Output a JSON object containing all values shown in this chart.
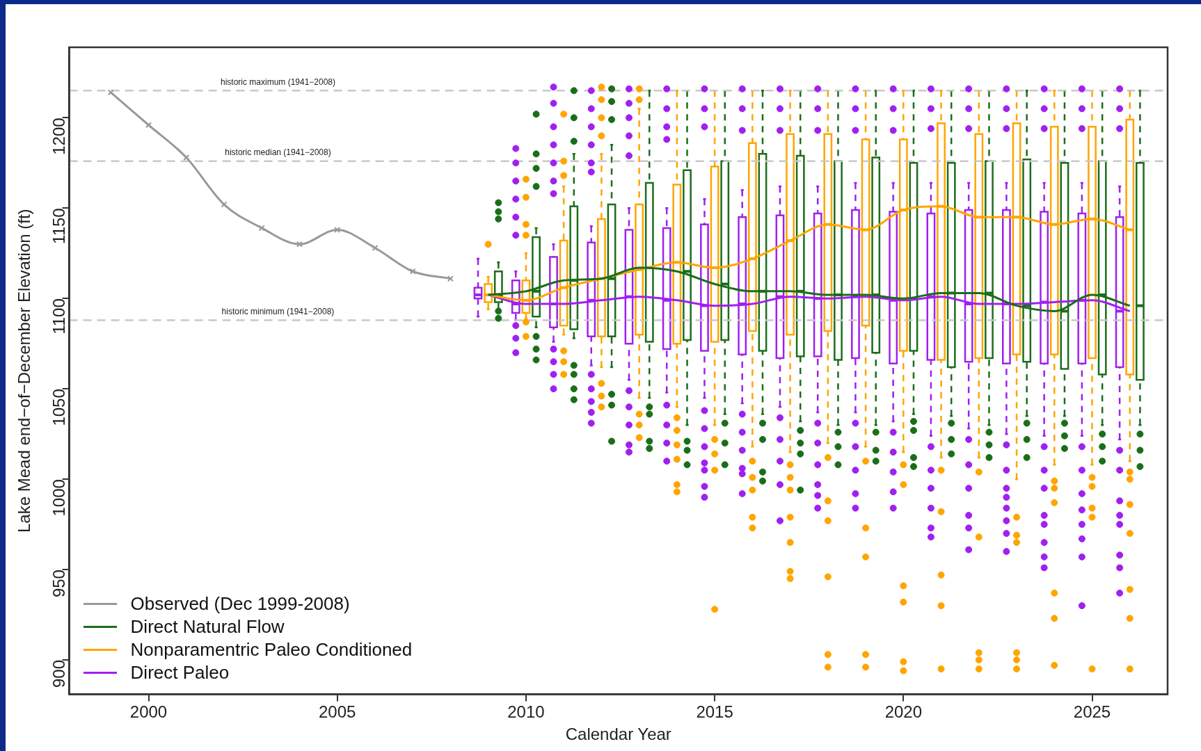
{
  "chart_data": {
    "type": "box",
    "xlabel": "Calendar Year",
    "ylabel": "Lake Mead end−of−December Elevation (ft)",
    "xlim": [
      1997.9,
      2027
    ],
    "xticks": [
      2000,
      2005,
      2010,
      2015,
      2020,
      2025
    ],
    "ylim": [
      881,
      1239
    ],
    "yticks": [
      900,
      950,
      1000,
      1050,
      1100,
      1150,
      1200
    ],
    "grid": false,
    "legend": "bottom left",
    "ref_lines": [
      {
        "axis": "y",
        "value": 1215,
        "label": "historic maximum (1941−2008)",
        "color": "#c8c8c8",
        "line_style": "dashed"
      },
      {
        "axis": "y",
        "value": 1176,
        "label": "historic median (1941−2008)",
        "color": "#c8c8c8",
        "line_style": "dashed"
      },
      {
        "axis": "y",
        "value": 1088,
        "label": "historic minimum (1941−2008)",
        "color": "#c8c8c8",
        "line_style": "dashed"
      }
    ],
    "series": [
      {
        "name": "Observed (Dec 1999-2008)",
        "type": "line",
        "color": "#999999",
        "marker": "cross",
        "x": [
          1999,
          2000,
          2001,
          2002,
          2003,
          2004,
          2005,
          2006,
          2007,
          2008
        ],
        "values": [
          1214,
          1196,
          1178,
          1152,
          1139,
          1130,
          1138,
          1128,
          1115,
          1111
        ]
      },
      {
        "name": "Direct Natural Flow",
        "type": "line",
        "color": "#1a6e1a",
        "x": [
          2009,
          2010,
          2011,
          2012,
          2013,
          2014,
          2015,
          2016,
          2017,
          2018,
          2019,
          2020,
          2021,
          2022,
          2023,
          2024,
          2025,
          2026
        ],
        "values": [
          1102,
          1104,
          1110,
          1111,
          1117,
          1115,
          1108,
          1104,
          1104,
          1102,
          1102,
          1100,
          1103,
          1103,
          1096,
          1093,
          1102,
          1096
        ]
      },
      {
        "name": "Nonparamentric Paleo Conditioned",
        "type": "line",
        "color": "#ffa500",
        "x": [
          2009,
          2010,
          2011,
          2012,
          2013,
          2014,
          2015,
          2016,
          2017,
          2018,
          2019,
          2020,
          2021,
          2022,
          2023,
          2024,
          2025,
          2026
        ],
        "values": [
          1102,
          1099,
          1106,
          1111,
          1116,
          1120,
          1117,
          1122,
          1132,
          1141,
          1138,
          1149,
          1151,
          1145,
          1145,
          1141,
          1144,
          1138
        ]
      },
      {
        "name": "Direct Paleo",
        "type": "line",
        "color": "#a020f0",
        "x": [
          2009,
          2010,
          2011,
          2012,
          2013,
          2014,
          2015,
          2016,
          2017,
          2018,
          2019,
          2020,
          2021,
          2022,
          2023,
          2024,
          2025,
          2026
        ],
        "values": [
          1102,
          1097,
          1097,
          1099,
          1101,
          1099,
          1096,
          1097,
          1101,
          1100,
          1101,
          1099,
          1101,
          1097,
          1097,
          1098,
          1099,
          1093
        ]
      },
      {
        "type": "box",
        "color": "#a020f0",
        "x": [
          2009,
          2010,
          2011,
          2012,
          2013,
          2014,
          2015,
          2016,
          2017,
          2018,
          2019,
          2020,
          2021,
          2022,
          2023,
          2024,
          2025,
          2026
        ],
        "boxes": [
          {
            "low": 1090,
            "q1": 1100,
            "median": 1102,
            "q3": 1106,
            "high": 1122
          },
          {
            "low": 1088,
            "q1": 1092,
            "median": 1097,
            "q3": 1110,
            "high": 1115,
            "outliers": [
              1183,
              1175,
              1165,
              1155,
              1145,
              1135,
              1085,
              1078,
              1070
            ]
          },
          {
            "low": 1076,
            "q1": 1084,
            "median": 1097,
            "q3": 1123,
            "high": 1130,
            "outliers": [
              1217,
              1208,
              1195,
              1185,
              1175,
              1165,
              1158,
              1072,
              1065,
              1058,
              1050
            ]
          },
          {
            "low": 1063,
            "q1": 1079,
            "median": 1099,
            "q3": 1131,
            "high": 1140,
            "outliers": [
              1215,
              1205,
              1195,
              1185,
              1175,
              1170,
              1058,
              1050,
              1043,
              1037,
              1031
            ]
          },
          {
            "low": 1055,
            "q1": 1075,
            "median": 1101,
            "q3": 1138,
            "high": 1150,
            "outliers": [
              1216,
              1208,
              1200,
              1190,
              1179,
              1049,
              1040,
              1030,
              1019,
              1015
            ]
          },
          {
            "low": 1048,
            "q1": 1072,
            "median": 1099,
            "q3": 1139,
            "high": 1150,
            "outliers": [
              1216,
              1205,
              1195,
              1188,
              1041,
              1030,
              1020,
              1010
            ]
          },
          {
            "low": 1045,
            "q1": 1071,
            "median": 1096,
            "q3": 1141,
            "high": 1155,
            "outliers": [
              1216,
              1205,
              1195,
              1038,
              1028,
              1018,
              1009,
              1005,
              996,
              990
            ]
          },
          {
            "low": 1042,
            "q1": 1069,
            "median": 1097,
            "q3": 1145,
            "high": 1160,
            "outliers": [
              1216,
              1205,
              1193,
              1036,
              1026,
              1016,
              1006,
              1003,
              992
            ]
          },
          {
            "low": 1040,
            "q1": 1067,
            "median": 1101,
            "q3": 1146,
            "high": 1162,
            "outliers": [
              1216,
              1205,
              1193,
              1034,
              1022,
              1010,
              997,
              977
            ]
          },
          {
            "low": 1037,
            "q1": 1068,
            "median": 1100,
            "q3": 1147,
            "high": 1162,
            "outliers": [
              1216,
              1205,
              1193,
              1031,
              1020,
              1008,
              997,
              991,
              984
            ]
          },
          {
            "low": 1037,
            "q1": 1067,
            "median": 1101,
            "q3": 1149,
            "high": 1164,
            "outliers": [
              1216,
              1205,
              1193,
              1031,
              1018,
              1005,
              992,
              984
            ]
          },
          {
            "low": 1032,
            "q1": 1064,
            "median": 1099,
            "q3": 1148,
            "high": 1164,
            "outliers": [
              1216,
              1205,
              1193,
              1026,
              1015,
              1004,
              993,
              984
            ]
          },
          {
            "low": 1024,
            "q1": 1066,
            "median": 1101,
            "q3": 1147,
            "high": 1164,
            "outliers": [
              1216,
              1205,
              1194,
              1018,
              1005,
              995,
              984,
              973,
              968
            ]
          },
          {
            "low": 1028,
            "q1": 1065,
            "median": 1097,
            "q3": 1149,
            "high": 1164,
            "outliers": [
              1216,
              1205,
              1194,
              1022,
              1008,
              995,
              980,
              973,
              961
            ]
          },
          {
            "low": 1025,
            "q1": 1064,
            "median": 1097,
            "q3": 1149,
            "high": 1164,
            "outliers": [
              1216,
              1205,
              1194,
              1019,
              1005,
              995,
              990,
              984,
              977,
              970,
              960
            ]
          },
          {
            "low": 1024,
            "q1": 1064,
            "median": 1098,
            "q3": 1148,
            "high": 1164,
            "outliers": [
              1216,
              1205,
              1194,
              1018,
              1005,
              995,
              980,
              975,
              965,
              957,
              951
            ]
          },
          {
            "low": 1024,
            "q1": 1064,
            "median": 1099,
            "q3": 1147,
            "high": 1164,
            "outliers": [
              1216,
              1205,
              1194,
              1018,
              1005,
              992,
              983,
              975,
              967,
              957,
              930
            ]
          },
          {
            "low": 1022,
            "q1": 1062,
            "median": 1093,
            "q3": 1145,
            "high": 1162,
            "outliers": [
              1216,
              1205,
              1194,
              1016,
              1005,
              988,
              980,
              975,
              958,
              951,
              937
            ]
          }
        ]
      },
      {
        "type": "box",
        "color": "#ffa500",
        "x": [
          2009,
          2010,
          2011,
          2012,
          2013,
          2014,
          2015,
          2016,
          2017,
          2018,
          2019,
          2020,
          2021,
          2022,
          2023,
          2024,
          2025,
          2026
        ],
        "boxes": [
          {
            "low": 1094,
            "q1": 1098,
            "median": 1102,
            "q3": 1108,
            "high": 1112,
            "outliers": [
              1130
            ]
          },
          {
            "low": 1089,
            "q1": 1092,
            "median": 1099,
            "q3": 1110,
            "high": 1125,
            "outliers": [
              1166,
              1156,
              1141,
              1135,
              1087,
              1079
            ]
          },
          {
            "low": 1080,
            "q1": 1085,
            "median": 1106,
            "q3": 1132,
            "high": 1162,
            "outliers": [
              1202,
              1176,
              1168,
              1071,
              1065,
              1058
            ]
          },
          {
            "low": 1062,
            "q1": 1079,
            "median": 1111,
            "q3": 1144,
            "high": 1180,
            "outliers": [
              1217,
              1210,
              1200,
              1190,
              1053,
              1046,
              1040
            ]
          },
          {
            "low": 1045,
            "q1": 1080,
            "median": 1116,
            "q3": 1152,
            "high": 1205,
            "outliers": [
              1216,
              1210,
              1036,
              1030,
              1023
            ]
          },
          {
            "low": 1040,
            "q1": 1075,
            "median": 1120,
            "q3": 1163,
            "high": 1215,
            "outliers": [
              1034,
              1027,
              1019,
              1011,
              997,
              993
            ]
          },
          {
            "low": 1030,
            "q1": 1076,
            "median": 1117,
            "q3": 1173,
            "high": 1215,
            "outliers": [
              1022,
              1014,
              1005,
              928
            ]
          },
          {
            "low": 1018,
            "q1": 1082,
            "median": 1122,
            "q3": 1186,
            "high": 1215,
            "outliers": [
              1010,
              1001,
              994,
              979,
              973
            ]
          },
          {
            "low": 1015,
            "q1": 1080,
            "median": 1132,
            "q3": 1191,
            "high": 1215,
            "outliers": [
              1008,
              1001,
              994,
              979,
              965,
              949,
              945
            ]
          },
          {
            "low": 1020,
            "q1": 1082,
            "median": 1141,
            "q3": 1191,
            "high": 1215,
            "outliers": [
              1012,
              988,
              977,
              946,
              903,
              896
            ]
          },
          {
            "low": 1018,
            "q1": 1085,
            "median": 1138,
            "q3": 1188,
            "high": 1215,
            "outliers": [
              1010,
              973,
              957,
              903,
              896
            ]
          },
          {
            "low": 1015,
            "q1": 1071,
            "median": 1149,
            "q3": 1188,
            "high": 1215,
            "outliers": [
              1008,
              997,
              941,
              932,
              899,
              894
            ]
          },
          {
            "low": 1012,
            "q1": 1066,
            "median": 1151,
            "q3": 1197,
            "high": 1215,
            "outliers": [
              1005,
              982,
              947,
              930,
              895
            ]
          },
          {
            "low": 1012,
            "q1": 1067,
            "median": 1145,
            "q3": 1191,
            "high": 1215,
            "outliers": [
              1004,
              968,
              904,
              900,
              895
            ]
          },
          {
            "low": 1000,
            "q1": 1069,
            "median": 1145,
            "q3": 1197,
            "high": 1215,
            "outliers": [
              979,
              969,
              965,
              904,
              900,
              895
            ]
          },
          {
            "low": 1008,
            "q1": 1069,
            "median": 1141,
            "q3": 1195,
            "high": 1215,
            "outliers": [
              999,
              995,
              987,
              937,
              923,
              897
            ]
          },
          {
            "low": 1008,
            "q1": 1067,
            "median": 1144,
            "q3": 1195,
            "high": 1215,
            "outliers": [
              1001,
              996,
              984,
              979,
              895
            ]
          },
          {
            "low": 1010,
            "q1": 1058,
            "median": 1138,
            "q3": 1199,
            "high": 1215,
            "outliers": [
              1004,
              1000,
              986,
              970,
              939,
              923,
              895
            ]
          }
        ]
      },
      {
        "type": "box",
        "color": "#1a6e1a",
        "x": [
          2009,
          2010,
          2011,
          2012,
          2013,
          2014,
          2015,
          2016,
          2017,
          2018,
          2019,
          2020,
          2021,
          2022,
          2023,
          2024,
          2025,
          2026
        ],
        "boxes": [
          {
            "low": 1094,
            "q1": 1098,
            "median": 1102,
            "q3": 1115,
            "high": 1120,
            "outliers": [
              1153,
              1148,
              1144,
              1093,
              1089
            ]
          },
          {
            "low": 1084,
            "q1": 1090,
            "median": 1104,
            "q3": 1134,
            "high": 1139,
            "outliers": [
              1202,
              1180,
              1172,
              1162,
              1079,
              1072,
              1066
            ]
          },
          {
            "low": 1078,
            "q1": 1083,
            "median": 1110,
            "q3": 1151,
            "high": 1180,
            "outliers": [
              1215,
              1200,
              1187,
              1063,
              1058,
              1050,
              1044
            ]
          },
          {
            "low": 1062,
            "q1": 1079,
            "median": 1111,
            "q3": 1152,
            "high": 1185,
            "outliers": [
              1216,
              1209,
              1199,
              1047,
              1041,
              1021
            ]
          },
          {
            "low": 1045,
            "q1": 1076,
            "median": 1117,
            "q3": 1164,
            "high": 1215,
            "outliers": [
              1040,
              1036,
              1021,
              1017
            ]
          },
          {
            "low": 1030,
            "q1": 1077,
            "median": 1115,
            "q3": 1171,
            "high": 1215,
            "outliers": [
              1021,
              1016,
              1008
            ]
          },
          {
            "low": 1036,
            "q1": 1077,
            "median": 1108,
            "q3": 1176,
            "high": 1215,
            "outliers": [
              1031,
              1020,
              1008
            ]
          },
          {
            "low": 1036,
            "q1": 1071,
            "median": 1104,
            "q3": 1180,
            "high": 1215,
            "outliers": [
              1031,
              1022,
              1004,
              999
            ]
          },
          {
            "low": 1032,
            "q1": 1068,
            "median": 1104,
            "q3": 1179,
            "high": 1215,
            "outliers": [
              1027,
              1020,
              1014,
              994
            ]
          },
          {
            "low": 1030,
            "q1": 1066,
            "median": 1102,
            "q3": 1176,
            "high": 1215,
            "outliers": [
              1026,
              1018,
              1008
            ]
          },
          {
            "low": 1030,
            "q1": 1070,
            "median": 1102,
            "q3": 1178,
            "high": 1215,
            "outliers": [
              1026,
              1016,
              1010
            ]
          },
          {
            "low": 1036,
            "q1": 1071,
            "median": 1100,
            "q3": 1175,
            "high": 1215,
            "outliers": [
              1032,
              1027,
              1012,
              1007
            ]
          },
          {
            "low": 1035,
            "q1": 1062,
            "median": 1103,
            "q3": 1175,
            "high": 1215,
            "outliers": [
              1031,
              1022,
              1014
            ]
          },
          {
            "low": 1030,
            "q1": 1067,
            "median": 1103,
            "q3": 1176,
            "high": 1215,
            "outliers": [
              1026,
              1019,
              1012
            ]
          },
          {
            "low": 1035,
            "q1": 1065,
            "median": 1096,
            "q3": 1177,
            "high": 1215,
            "outliers": [
              1031,
              1022,
              1012
            ]
          },
          {
            "low": 1035,
            "q1": 1061,
            "median": 1093,
            "q3": 1175,
            "high": 1215,
            "outliers": [
              1031,
              1024,
              1017
            ]
          },
          {
            "low": 1030,
            "q1": 1058,
            "median": 1102,
            "q3": 1176,
            "high": 1215,
            "outliers": [
              1025,
              1018,
              1010
            ]
          },
          {
            "low": 1030,
            "q1": 1055,
            "median": 1096,
            "q3": 1175,
            "high": 1215,
            "outliers": [
              1025,
              1016,
              1007
            ]
          }
        ]
      }
    ]
  }
}
